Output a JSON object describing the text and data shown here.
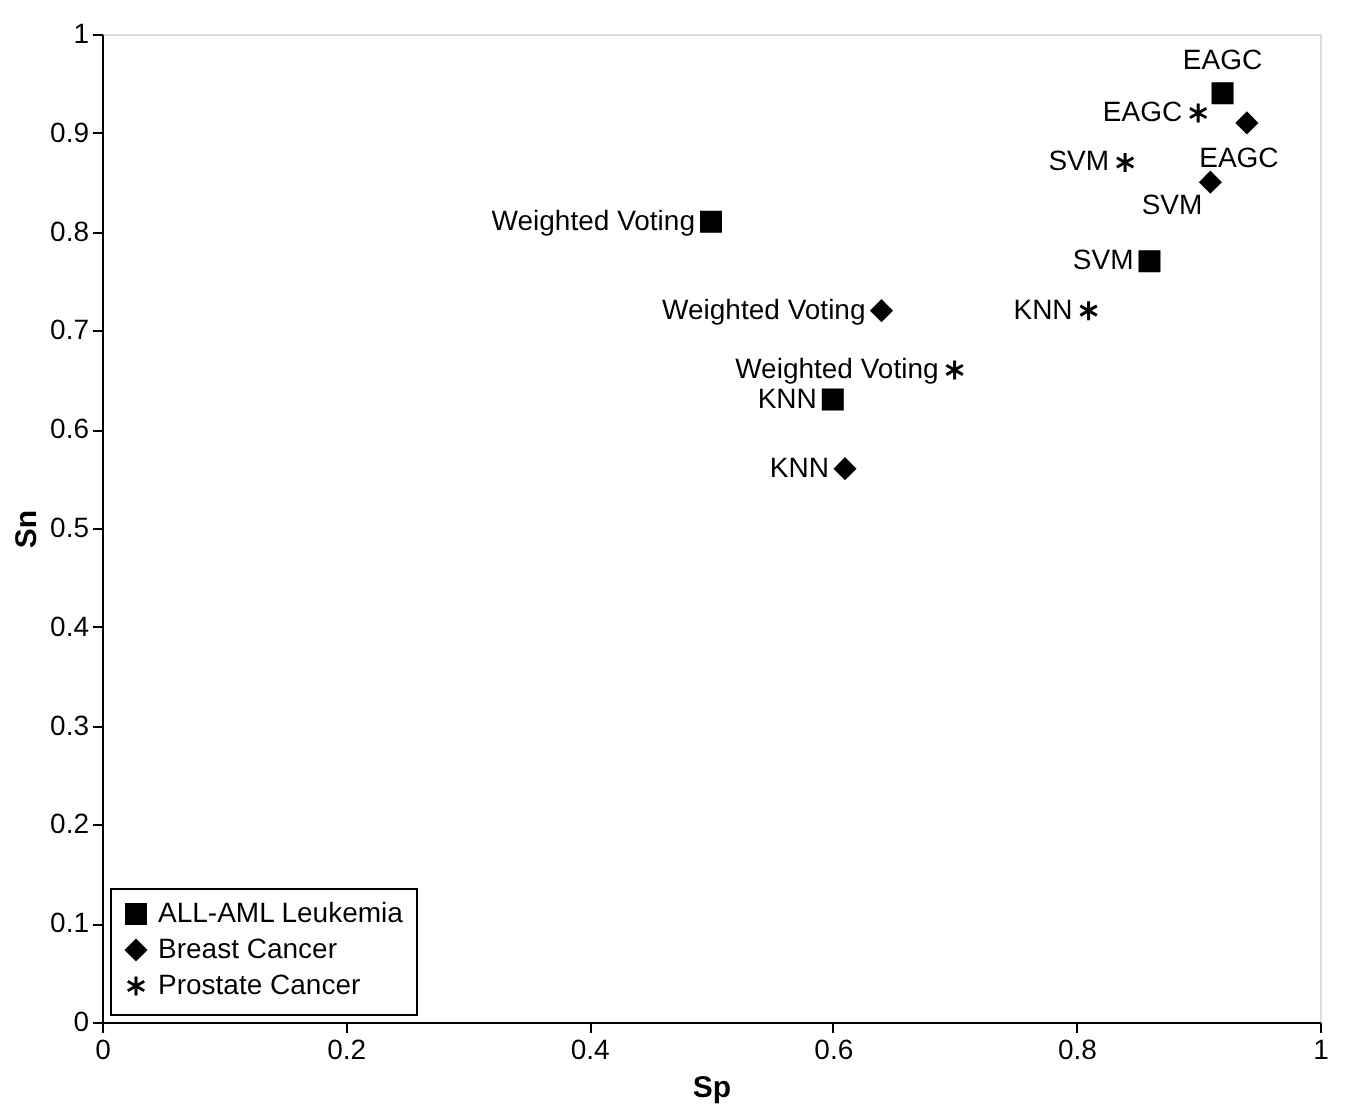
{
  "chart_data": {
    "type": "scatter",
    "xlabel": "Sp",
    "ylabel": "Sn",
    "xlim": [
      0,
      1
    ],
    "ylim": [
      0,
      1
    ],
    "xticks": [
      0,
      0.2,
      0.4,
      0.6,
      0.8,
      1
    ],
    "yticks": [
      0,
      0.1,
      0.2,
      0.3,
      0.4,
      0.5,
      0.6,
      0.7,
      0.8,
      0.9,
      1
    ],
    "grid": false,
    "legend": "bottom left",
    "series": [
      {
        "name": "ALL-AML Leukemia",
        "color": "#000000",
        "marker": "square",
        "x": [
          0.92,
          0.5,
          0.86,
          0.6
        ],
        "values": [
          0.94,
          0.81,
          0.77,
          0.63
        ]
      },
      {
        "name": "Breast Cancer",
        "color": "#000000",
        "marker": "diamond",
        "x": [
          0.94,
          0.91,
          0.64,
          0.61
        ],
        "values": [
          0.91,
          0.85,
          0.72,
          0.56
        ]
      },
      {
        "name": "Prostate Cancer",
        "color": "#000000",
        "marker": "cross",
        "x": [
          0.9,
          0.84,
          0.81,
          0.7
        ],
        "values": [
          0.92,
          0.87,
          0.72,
          0.66
        ]
      }
    ],
    "annotations": [
      {
        "text": "EAGC",
        "x": 0.92,
        "y": 0.94
      },
      {
        "text": "Weighted Voting",
        "x": 0.5,
        "y": 0.81
      },
      {
        "text": "SVM",
        "x": 0.86,
        "y": 0.77
      },
      {
        "text": "KNN",
        "x": 0.6,
        "y": 0.63
      },
      {
        "text": "EAGC",
        "x": 0.94,
        "y": 0.91
      },
      {
        "text": "SVM",
        "x": 0.91,
        "y": 0.85
      },
      {
        "text": "Weighted Voting",
        "x": 0.64,
        "y": 0.72
      },
      {
        "text": "KNN",
        "x": 0.61,
        "y": 0.56
      },
      {
        "text": "EAGC",
        "x": 0.9,
        "y": 0.92
      },
      {
        "text": "SVM",
        "x": 0.84,
        "y": 0.87
      },
      {
        "text": "KNN",
        "x": 0.81,
        "y": 0.72
      },
      {
        "text": "Weighted Voting",
        "x": 0.7,
        "y": 0.66
      }
    ]
  }
}
